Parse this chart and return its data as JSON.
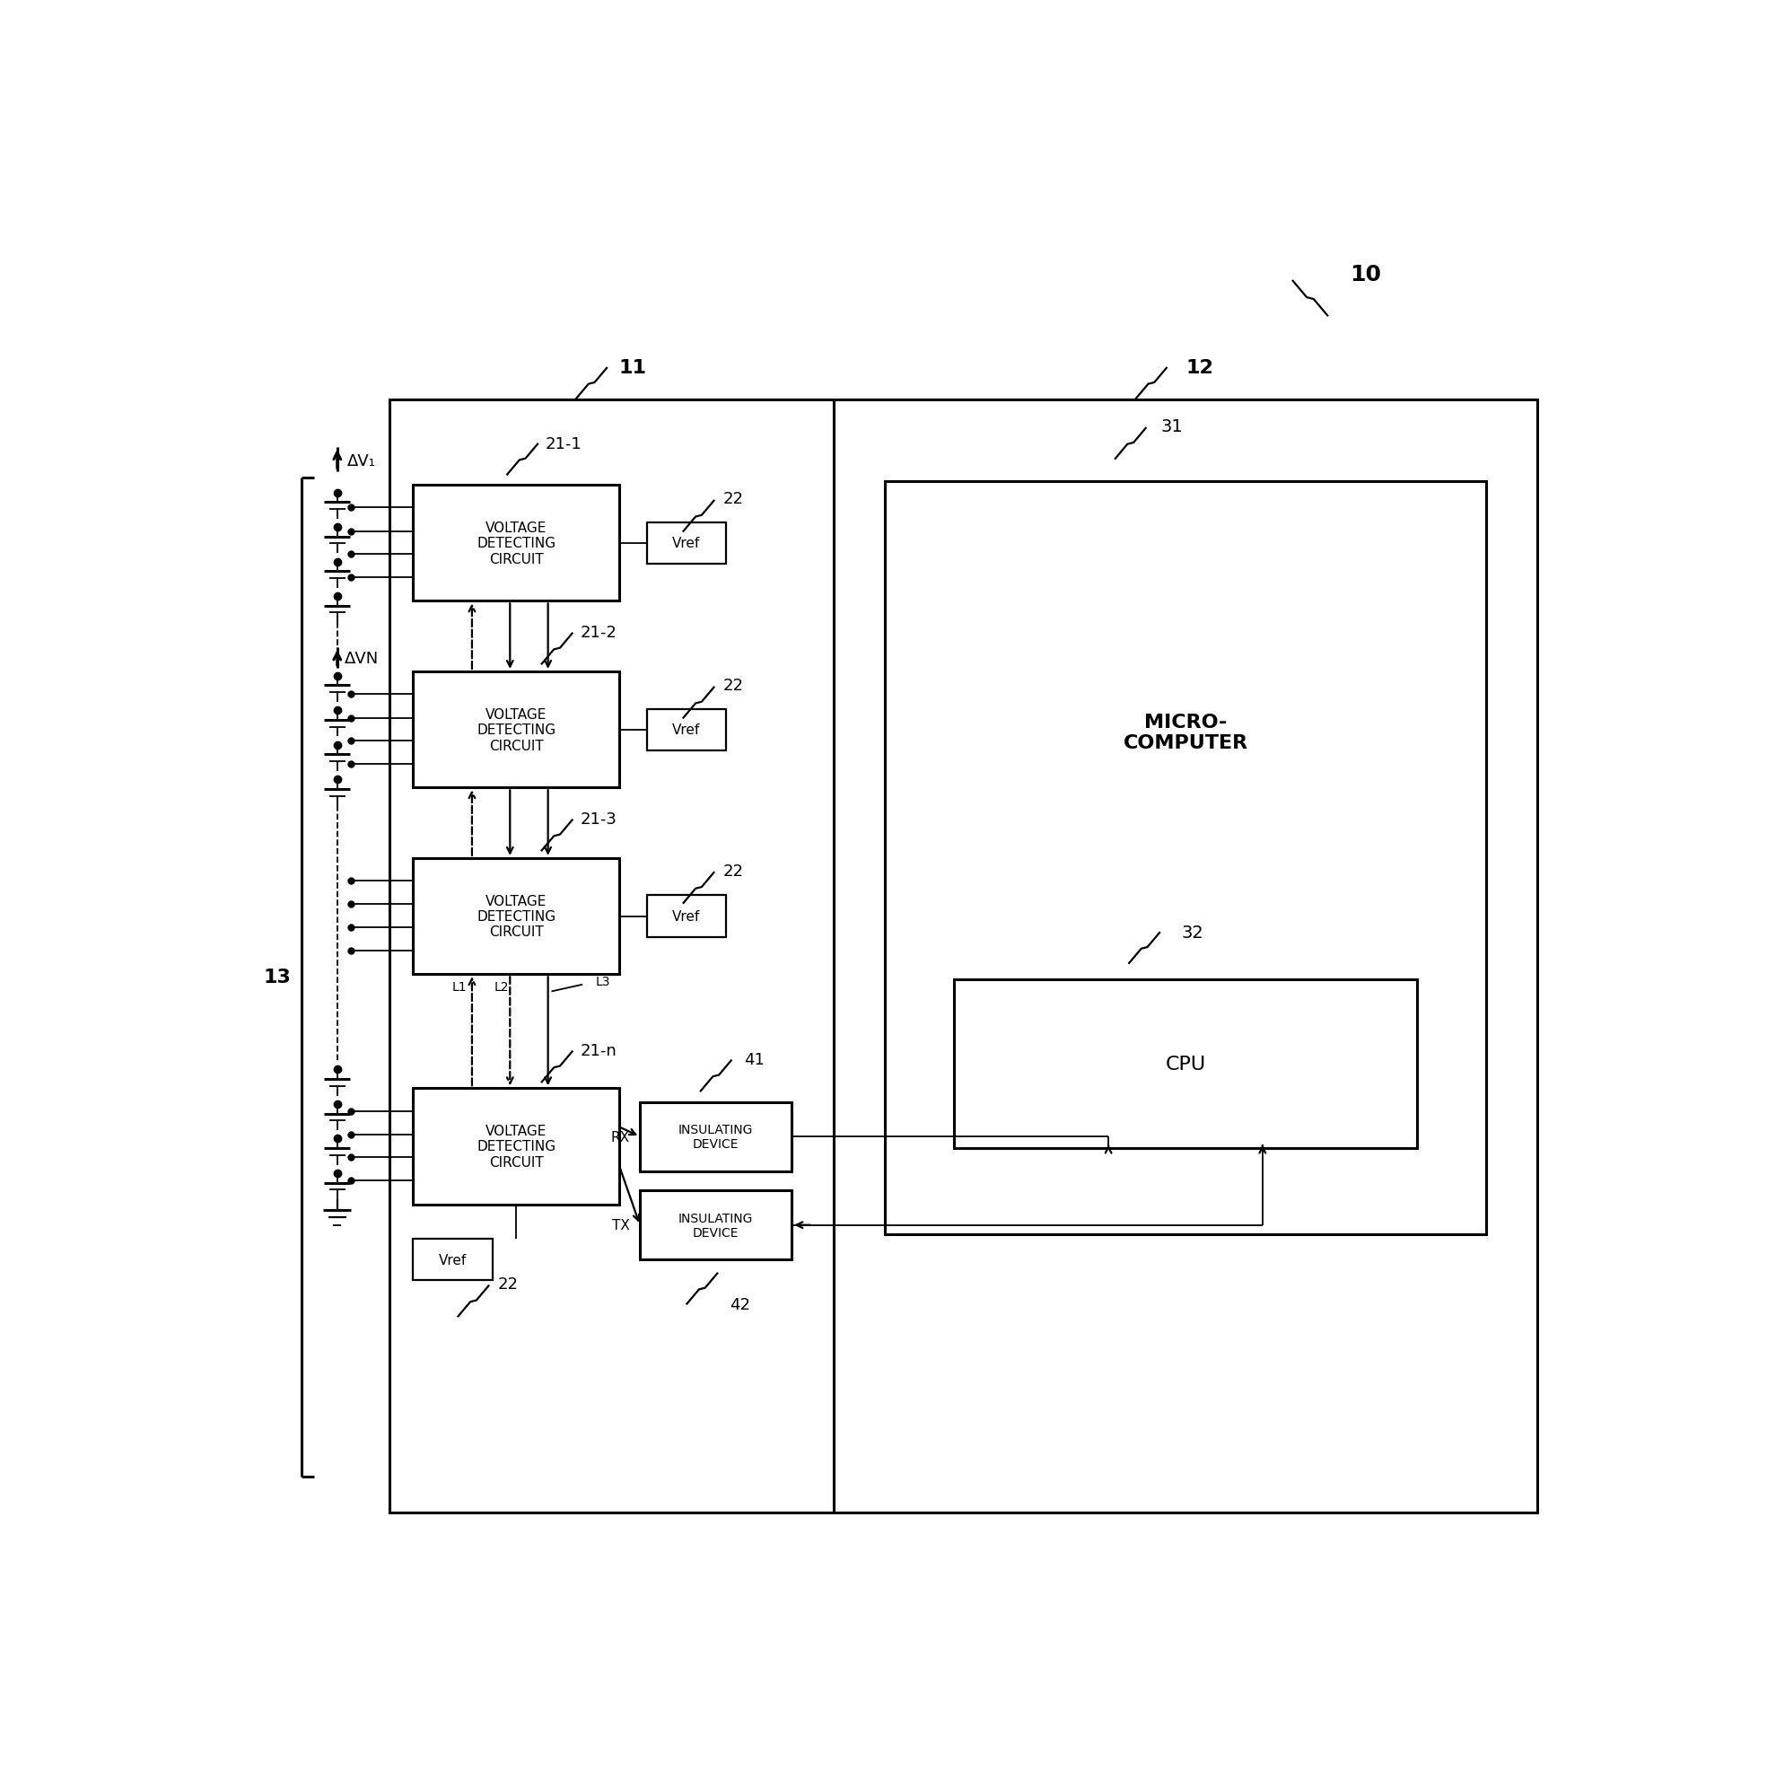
{
  "bg": "#ffffff",
  "lc": "#000000",
  "fw": 19.69,
  "fh": 19.74,
  "dpi": 100,
  "lw_thick": 2.2,
  "lw_mid": 1.6,
  "lw_thin": 1.3,
  "texts": {
    "r10": "10",
    "r11": "11",
    "r12": "12",
    "r13": "13",
    "r211": "21-1",
    "r212": "21-2",
    "r213": "21-3",
    "r21n": "21-n",
    "r22": "22",
    "r31": "31",
    "r32": "32",
    "r41": "41",
    "r42": "42",
    "rL1": "L1",
    "rL2": "L2",
    "rL3": "L3",
    "rV1": "ΔV₁",
    "rVN": "ΔVN",
    "rVDC": "VOLTAGE\nDETECTING\nCIRCUIT",
    "rVref": "Vref",
    "rMC": "MICRO-\nCOMPUTER",
    "rCPU": "CPU",
    "rIns": "INSULATING\nDEVICE",
    "rRX": "RX",
    "rTX": "TX"
  }
}
